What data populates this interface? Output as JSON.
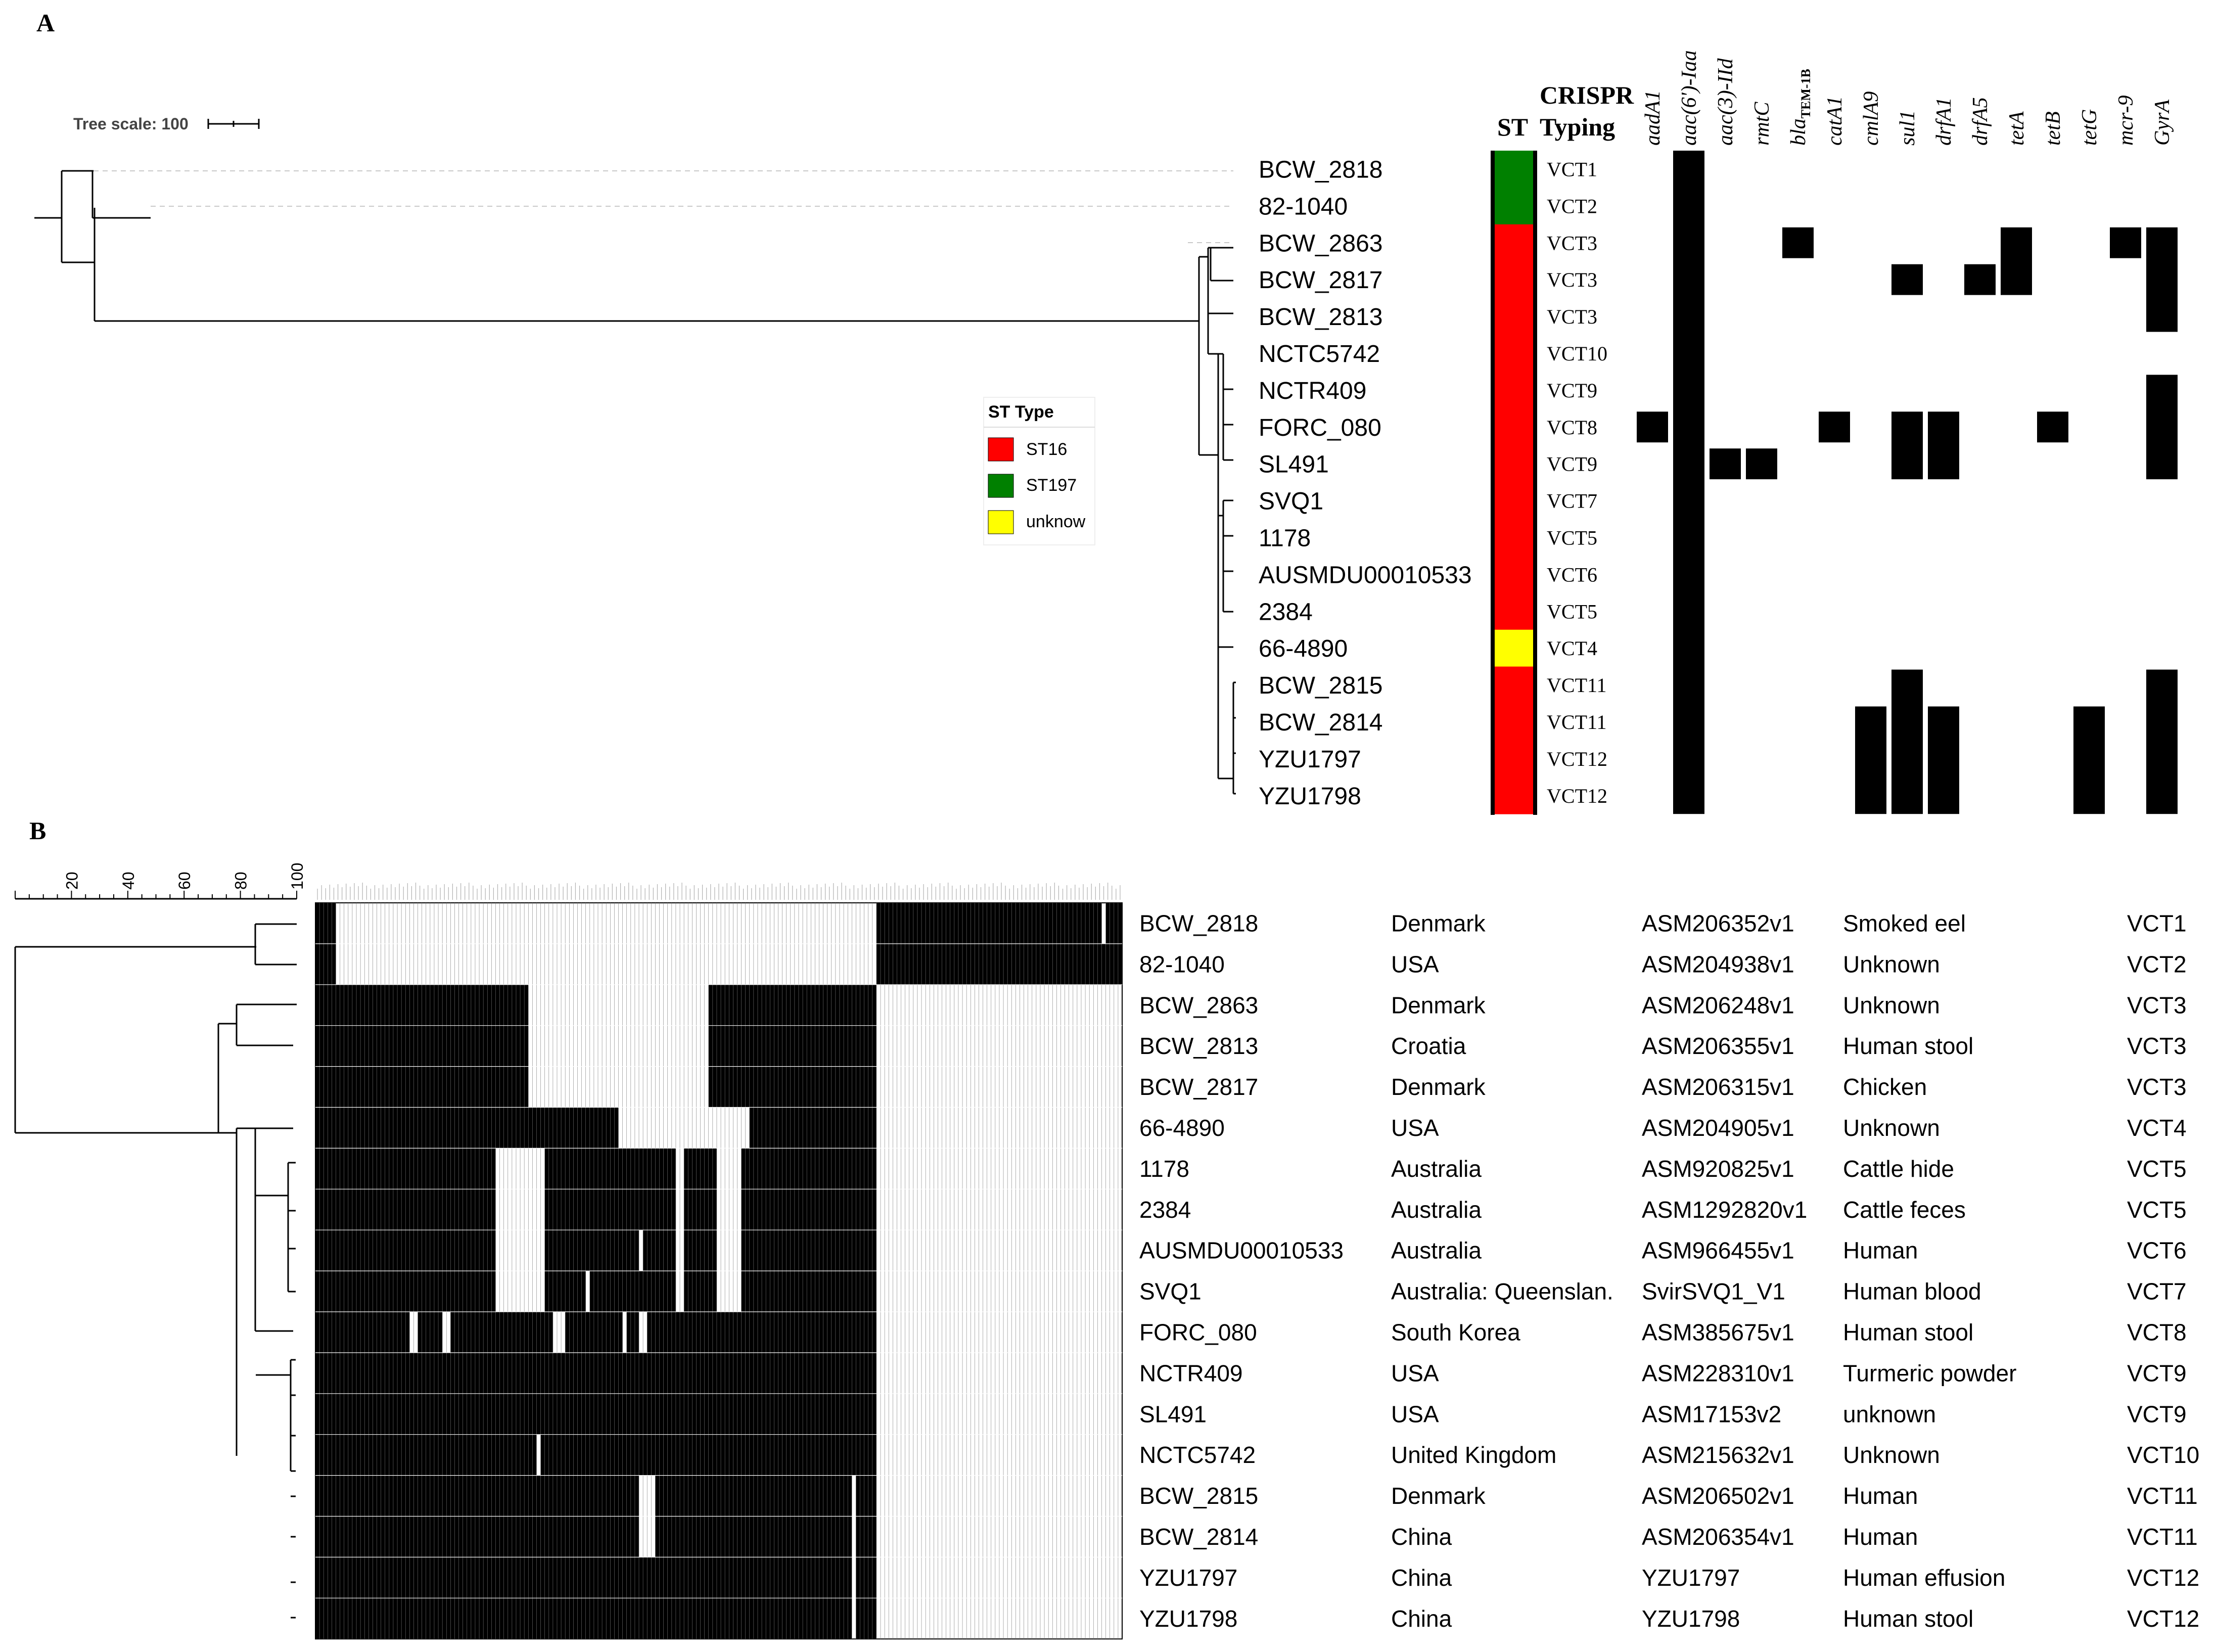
{
  "panel_a": {
    "letter": "A",
    "tree_scale_label": "Tree scale: 100",
    "st_header": "ST",
    "crispr_header_line1": "CRISPR",
    "crispr_header_line2": "Typing",
    "genes": [
      "aadA1",
      "aac(6')-Iaa",
      "aac(3)-IId",
      "rmtC",
      "bla_TEM-1B",
      "catA1",
      "cmlA9",
      "sul1",
      "drfA1",
      "drfA5",
      "tetA",
      "tetB",
      "tetG",
      "mcr-9",
      "GyrA"
    ],
    "bla_base": "bla",
    "bla_sub": "TEM-1B",
    "legend": {
      "title": "ST Type",
      "items": [
        {
          "label": "ST16",
          "color": "#ff0000"
        },
        {
          "label": "ST197",
          "color": "#008000"
        },
        {
          "label": "unknow",
          "color": "#ffff00"
        }
      ]
    },
    "rows": [
      {
        "strain": "BCW_2818",
        "st": "ST197",
        "crispr": "VCT1"
      },
      {
        "strain": "82-1040",
        "st": "ST197",
        "crispr": "VCT2"
      },
      {
        "strain": "BCW_2863",
        "st": "ST16",
        "crispr": "VCT3"
      },
      {
        "strain": "BCW_2817",
        "st": "ST16",
        "crispr": "VCT3"
      },
      {
        "strain": "BCW_2813",
        "st": "ST16",
        "crispr": "VCT3"
      },
      {
        "strain": "NCTC5742",
        "st": "ST16",
        "crispr": "VCT10"
      },
      {
        "strain": "NCTR409",
        "st": "ST16",
        "crispr": "VCT9"
      },
      {
        "strain": "FORC_080",
        "st": "ST16",
        "crispr": "VCT8"
      },
      {
        "strain": "SL491",
        "st": "ST16",
        "crispr": "VCT9"
      },
      {
        "strain": "SVQ1",
        "st": "ST16",
        "crispr": "VCT7"
      },
      {
        "strain": "1178",
        "st": "ST16",
        "crispr": "VCT5"
      },
      {
        "strain": "AUSMDU00010533",
        "st": "ST16",
        "crispr": "VCT6"
      },
      {
        "strain": "2384",
        "st": "ST16",
        "crispr": "VCT5"
      },
      {
        "strain": "66-4890",
        "st": "unknow",
        "crispr": "VCT4"
      },
      {
        "strain": "BCW_2815",
        "st": "ST16",
        "crispr": "VCT11"
      },
      {
        "strain": "BCW_2814",
        "st": "ST16",
        "crispr": "VCT11"
      },
      {
        "strain": "YZU1797",
        "st": "ST16",
        "crispr": "VCT12"
      },
      {
        "strain": "YZU1798",
        "st": "ST16",
        "crispr": "VCT12"
      }
    ],
    "gene_presence": [
      [
        0,
        1,
        0,
        0,
        0,
        0,
        0,
        0,
        0,
        0,
        0,
        0,
        0,
        0,
        0
      ],
      [
        0,
        1,
        0,
        0,
        0,
        0,
        0,
        0,
        0,
        0,
        0,
        0,
        0,
        0,
        0
      ],
      [
        0,
        1,
        0,
        0,
        1,
        0,
        0,
        0,
        0,
        0,
        1,
        0,
        0,
        1,
        1
      ],
      [
        0,
        1,
        0,
        0,
        0,
        0,
        0,
        1,
        0,
        1,
        1,
        0,
        0,
        0,
        1
      ],
      [
        0,
        1,
        0,
        0,
        0,
        0,
        0,
        0,
        0,
        0,
        0,
        0,
        0,
        0,
        1
      ],
      [
        0,
        1,
        0,
        0,
        0,
        0,
        0,
        0,
        0,
        0,
        0,
        0,
        0,
        0,
        0
      ],
      [
        0,
        1,
        0,
        0,
        0,
        0,
        0,
        0,
        0,
        0,
        0,
        0,
        0,
        0,
        1
      ],
      [
        1,
        1,
        0,
        0,
        0,
        1,
        0,
        1,
        1,
        0,
        0,
        1,
        0,
        0,
        1
      ],
      [
        0,
        1,
        1,
        1,
        0,
        0,
        0,
        1,
        1,
        0,
        0,
        0,
        0,
        0,
        1
      ],
      [
        0,
        1,
        0,
        0,
        0,
        0,
        0,
        0,
        0,
        0,
        0,
        0,
        0,
        0,
        0
      ],
      [
        0,
        1,
        0,
        0,
        0,
        0,
        0,
        0,
        0,
        0,
        0,
        0,
        0,
        0,
        0
      ],
      [
        0,
        1,
        0,
        0,
        0,
        0,
        0,
        0,
        0,
        0,
        0,
        0,
        0,
        0,
        0
      ],
      [
        0,
        1,
        0,
        0,
        0,
        0,
        0,
        0,
        0,
        0,
        0,
        0,
        0,
        0,
        0
      ],
      [
        0,
        1,
        0,
        0,
        0,
        0,
        0,
        0,
        0,
        0,
        0,
        0,
        0,
        0,
        0
      ],
      [
        0,
        1,
        0,
        0,
        0,
        0,
        0,
        1,
        0,
        0,
        0,
        0,
        0,
        0,
        1
      ],
      [
        0,
        1,
        0,
        0,
        0,
        0,
        1,
        1,
        1,
        0,
        0,
        0,
        1,
        0,
        1
      ],
      [
        0,
        1,
        0,
        0,
        0,
        0,
        1,
        1,
        1,
        0,
        0,
        0,
        1,
        0,
        1
      ],
      [
        0,
        1,
        0,
        0,
        0,
        0,
        1,
        1,
        1,
        0,
        0,
        0,
        1,
        0,
        1
      ]
    ]
  },
  "panel_b": {
    "letter": "B",
    "scale_ticks": [
      "20",
      "40",
      "60",
      "80",
      "100"
    ],
    "rows": [
      {
        "strain": "BCW_2818",
        "country": "Denmark",
        "assembly": "ASM206352v1",
        "source": "Smoked eel",
        "crispr": "VCT1"
      },
      {
        "strain": "82-1040",
        "country": "USA",
        "assembly": "ASM204938v1",
        "source": "Unknown",
        "crispr": "VCT2"
      },
      {
        "strain": "BCW_2863",
        "country": "Denmark",
        "assembly": "ASM206248v1",
        "source": "Unknown",
        "crispr": "VCT3"
      },
      {
        "strain": "BCW_2813",
        "country": "Croatia",
        "assembly": "ASM206355v1",
        "source": "Human stool",
        "crispr": "VCT3"
      },
      {
        "strain": "BCW_2817",
        "country": "Denmark",
        "assembly": "ASM206315v1",
        "source": "Chicken",
        "crispr": "VCT3"
      },
      {
        "strain": "66-4890",
        "country": "USA",
        "assembly": "ASM204905v1",
        "source": "Unknown",
        "crispr": "VCT4"
      },
      {
        "strain": "1178",
        "country": "Australia",
        "assembly": "ASM920825v1",
        "source": "Cattle hide",
        "crispr": "VCT5"
      },
      {
        "strain": "2384",
        "country": "Australia",
        "assembly": "ASM1292820v1",
        "source": "Cattle feces",
        "crispr": "VCT5"
      },
      {
        "strain": "AUSMDU00010533",
        "country": "Australia",
        "assembly": "ASM966455v1",
        "source": "Human",
        "crispr": "VCT6"
      },
      {
        "strain": "SVQ1",
        "country": "Australia: Queenslan.",
        "assembly": "SvirSVQ1_V1",
        "source": "Human blood",
        "crispr": "VCT7"
      },
      {
        "strain": "FORC_080",
        "country": "South Korea",
        "assembly": "ASM385675v1",
        "source": "Human stool",
        "crispr": "VCT8"
      },
      {
        "strain": "NCTR409",
        "country": "USA",
        "assembly": "ASM228310v1",
        "source": "Turmeric powder",
        "crispr": "VCT9"
      },
      {
        "strain": "SL491",
        "country": "USA",
        "assembly": "ASM17153v2",
        "source": "unknown",
        "crispr": "VCT9"
      },
      {
        "strain": "NCTC5742",
        "country": "United Kingdom",
        "assembly": "ASM215632v1",
        "source": "Unknown",
        "crispr": "VCT10"
      },
      {
        "strain": "BCW_2815",
        "country": "Denmark",
        "assembly": "ASM206502v1",
        "source": "Human",
        "crispr": "VCT11"
      },
      {
        "strain": "BCW_2814",
        "country": "China",
        "assembly": "ASM206354v1",
        "source": "Human",
        "crispr": "VCT11"
      },
      {
        "strain": "YZU1797",
        "country": "China",
        "assembly": "YZU1797",
        "source": "Human effusion",
        "crispr": "VCT12"
      },
      {
        "strain": "YZU1798",
        "country": "China",
        "assembly": "YZU1798",
        "source": "Human stool",
        "crispr": "VCT12"
      }
    ],
    "spacer_matrix_runs": [
      [
        [
          0,
          2
        ],
        [
          3,
          4
        ],
        [
          137,
          185
        ],
        [
          186,
          191
        ],
        [
          193,
          196
        ]
      ],
      [
        [
          0,
          2
        ],
        [
          3,
          4
        ],
        [
          137,
          196
        ]
      ],
      [
        [
          0,
          51
        ],
        [
          96,
          136
        ]
      ],
      [
        [
          0,
          51
        ],
        [
          96,
          136
        ]
      ],
      [
        [
          0,
          51
        ],
        [
          96,
          136
        ]
      ],
      [
        [
          0,
          73
        ],
        [
          106,
          136
        ]
      ],
      [
        [
          0,
          43
        ],
        [
          56,
          87
        ],
        [
          90,
          97
        ],
        [
          104,
          136
        ]
      ],
      [
        [
          0,
          43
        ],
        [
          56,
          87
        ],
        [
          90,
          97
        ],
        [
          104,
          136
        ]
      ],
      [
        [
          0,
          43
        ],
        [
          56,
          78
        ],
        [
          80,
          87
        ],
        [
          90,
          97
        ],
        [
          104,
          136
        ]
      ],
      [
        [
          0,
          43
        ],
        [
          56,
          65
        ],
        [
          67,
          87
        ],
        [
          90,
          97
        ],
        [
          104,
          136
        ]
      ],
      [
        [
          0,
          22
        ],
        [
          25,
          30
        ],
        [
          33,
          57
        ],
        [
          61,
          74
        ],
        [
          76,
          78
        ],
        [
          81,
          136
        ]
      ],
      [
        [
          0,
          136
        ]
      ],
      [
        [
          0,
          136
        ]
      ],
      [
        [
          0,
          53
        ],
        [
          55,
          136
        ]
      ],
      [
        [
          0,
          78
        ],
        [
          83,
          130
        ],
        [
          132,
          136
        ]
      ],
      [
        [
          0,
          78
        ],
        [
          83,
          130
        ],
        [
          132,
          136
        ]
      ],
      [
        [
          0,
          130
        ],
        [
          132,
          136
        ]
      ],
      [
        [
          0,
          130
        ],
        [
          132,
          136
        ]
      ]
    ]
  }
}
